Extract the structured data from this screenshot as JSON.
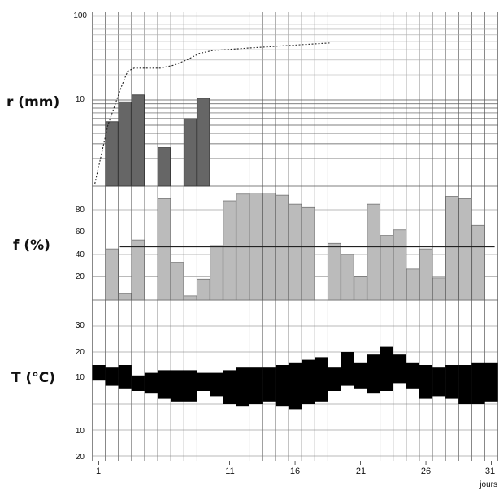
{
  "chart_data": [
    {
      "type": "bar",
      "panel": "rainfall",
      "label": "r (mm)",
      "scale": "log",
      "ylim": [
        1,
        100
      ],
      "yticks": [
        10,
        100
      ],
      "x": [
        2,
        3,
        4,
        6,
        8,
        9
      ],
      "values": [
        5.5,
        9.5,
        11.5,
        2.7,
        6,
        10.5
      ],
      "cumulative_line": {
        "style": "dotted",
        "x": [
          1,
          2,
          3,
          3.5,
          4,
          4.5,
          6,
          7,
          8,
          9,
          10,
          11,
          12,
          13,
          14,
          15,
          16,
          17,
          18,
          19
        ],
        "values": [
          1,
          5,
          14,
          22,
          24,
          24,
          24,
          26,
          30,
          36,
          39,
          40,
          41,
          42,
          43,
          44,
          45,
          46,
          47,
          48
        ]
      },
      "color": "#666666"
    },
    {
      "type": "bar",
      "panel": "frequency",
      "label": "f (%)",
      "ylim": [
        0,
        100
      ],
      "yticks": [
        20,
        40,
        60,
        80
      ],
      "x": [
        2,
        3,
        4,
        5,
        6,
        7,
        8,
        9,
        10,
        11,
        12,
        13,
        14,
        15,
        16,
        17,
        18,
        19,
        20,
        21,
        22,
        23,
        24,
        25,
        26,
        27,
        28,
        29,
        30,
        31
      ],
      "values": [
        45,
        5,
        53,
        0,
        90,
        33,
        3,
        18,
        48,
        88,
        94,
        95,
        95,
        93,
        85,
        82,
        0,
        50,
        40,
        20,
        85,
        57,
        62,
        27,
        45,
        19,
        92,
        90,
        66,
        0
      ],
      "mean_line": 47,
      "color": "#bbbbbb"
    },
    {
      "type": "bar",
      "panel": "temperature",
      "label": "T (°C)",
      "ylim": [
        -20,
        40
      ],
      "yticks": [
        -20,
        -10,
        10,
        20,
        30
      ],
      "ytick_labels": [
        "20",
        "10",
        "10",
        "20",
        "30"
      ],
      "x": [
        1,
        2,
        3,
        4,
        5,
        6,
        7,
        8,
        9,
        10,
        11,
        12,
        13,
        14,
        15,
        16,
        17,
        18,
        19,
        20,
        21,
        22,
        23,
        24,
        25,
        26,
        27,
        28,
        29,
        30,
        31
      ],
      "tmin": [
        9,
        7,
        6,
        5,
        4,
        2,
        1,
        1,
        5,
        3,
        0,
        -1,
        0,
        1,
        -1,
        -2,
        0,
        1,
        5,
        7,
        6,
        4,
        5,
        8,
        6,
        2,
        3,
        2,
        0,
        0,
        1
      ],
      "tmax": [
        15,
        14,
        15,
        11,
        12,
        13,
        13,
        13,
        12,
        12,
        13,
        14,
        14,
        14,
        15,
        16,
        17,
        18,
        14,
        20,
        16,
        19,
        22,
        19,
        16,
        15,
        14,
        15,
        15,
        16,
        16
      ],
      "color": "#000000"
    }
  ],
  "x_axis": {
    "ticks": [
      1,
      11,
      16,
      21,
      26,
      31
    ],
    "tick_labels": [
      "1",
      "11",
      "16",
      "21",
      "26",
      "31"
    ],
    "unit": "jours",
    "xlim": [
      0.5,
      31.5
    ]
  }
}
